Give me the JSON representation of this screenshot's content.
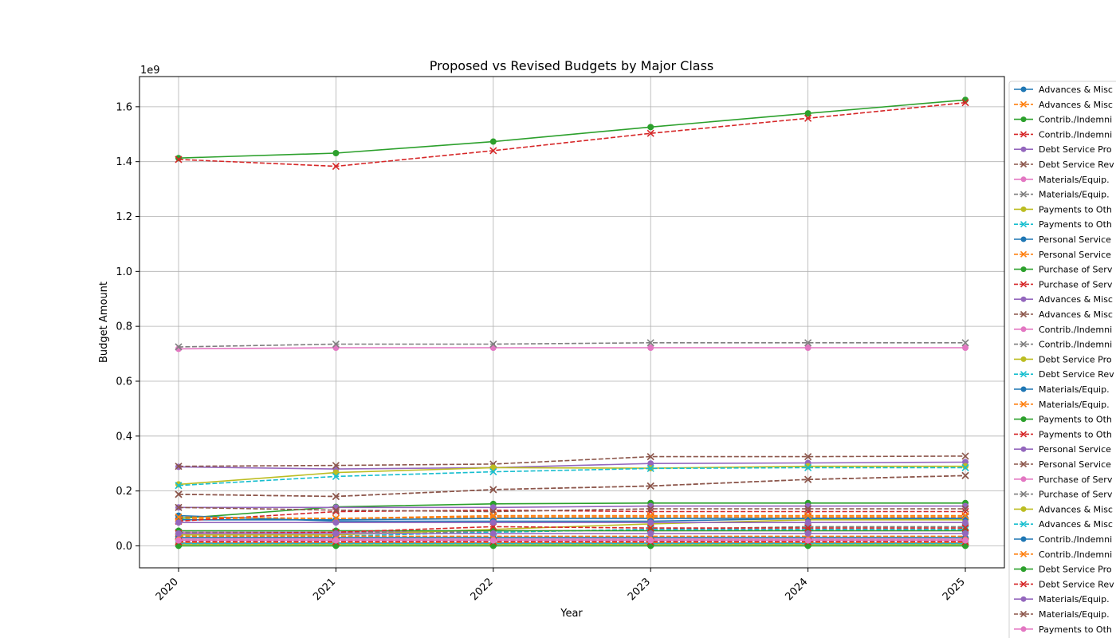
{
  "chart_data": {
    "type": "line",
    "title": "Proposed vs Revised Budgets by Major Class",
    "xlabel": "Year",
    "ylabel": "Budget Amount",
    "y_offset_label": "1e9",
    "x": [
      "2020",
      "2021",
      "2022",
      "2023",
      "2024",
      "2025"
    ],
    "ylim": [
      -0.08,
      1.71
    ],
    "yticks": [
      "0.0",
      "0.2",
      "0.4",
      "0.6",
      "0.8",
      "1.0",
      "1.2",
      "1.4",
      "1.6"
    ],
    "grid": true,
    "legend_position": "right (clipped)",
    "series": [
      {
        "name": "Advances & Misc",
        "color": "#1f77b4",
        "style": "solid",
        "marker": "o",
        "values": [
          0.01,
          0.01,
          0.01,
          0.01,
          0.01,
          0.01
        ]
      },
      {
        "name": "Advances & Misc",
        "color": "#ff7f0e",
        "style": "dashed",
        "marker": "x",
        "values": [
          0.012,
          0.012,
          0.012,
          0.012,
          0.012,
          0.012
        ]
      },
      {
        "name": "Contrib./Indemni",
        "color": "#2ca02c",
        "style": "solid",
        "marker": "o",
        "values": [
          1.413,
          1.431,
          1.473,
          1.526,
          1.576,
          1.625
        ]
      },
      {
        "name": "Contrib./Indemni",
        "color": "#d62728",
        "style": "dashed",
        "marker": "x",
        "values": [
          1.408,
          1.383,
          1.44,
          1.503,
          1.558,
          1.615
        ]
      },
      {
        "name": "Debt Service Pro",
        "color": "#9467bd",
        "style": "solid",
        "marker": "o",
        "values": [
          0.288,
          0.28,
          0.285,
          0.3,
          0.302,
          0.305
        ]
      },
      {
        "name": "Debt Service Rev",
        "color": "#8c564b",
        "style": "dashed",
        "marker": "x",
        "values": [
          0.29,
          0.293,
          0.298,
          0.325,
          0.325,
          0.327
        ]
      },
      {
        "name": "Materials/Equip.",
        "color": "#e377c2",
        "style": "solid",
        "marker": "o",
        "values": [
          0.718,
          0.722,
          0.722,
          0.722,
          0.722,
          0.722
        ]
      },
      {
        "name": "Materials/Equip.",
        "color": "#7f7f7f",
        "style": "dashed",
        "marker": "x",
        "values": [
          0.725,
          0.735,
          0.735,
          0.74,
          0.74,
          0.74
        ]
      },
      {
        "name": "Payments to Oth",
        "color": "#bcbd22",
        "style": "solid",
        "marker": "o",
        "values": [
          0.224,
          0.267,
          0.285,
          0.283,
          0.29,
          0.29
        ]
      },
      {
        "name": "Payments to Oth",
        "color": "#17becf",
        "style": "dashed",
        "marker": "x",
        "values": [
          0.22,
          0.253,
          0.27,
          0.282,
          0.285,
          0.285
        ]
      },
      {
        "name": "Personal Service",
        "color": "#1f77b4",
        "style": "solid",
        "marker": "o",
        "values": [
          0.095,
          0.095,
          0.1,
          0.1,
          0.1,
          0.1
        ]
      },
      {
        "name": "Personal Service",
        "color": "#ff7f0e",
        "style": "dashed",
        "marker": "x",
        "values": [
          0.1,
          0.1,
          0.105,
          0.105,
          0.105,
          0.105
        ]
      },
      {
        "name": "Purchase of Serv",
        "color": "#2ca02c",
        "style": "solid",
        "marker": "o",
        "values": [
          0.1,
          0.142,
          0.153,
          0.156,
          0.156,
          0.156
        ]
      },
      {
        "name": "Purchase of Serv",
        "color": "#d62728",
        "style": "dashed",
        "marker": "x",
        "values": [
          0.09,
          0.125,
          0.13,
          0.125,
          0.125,
          0.125
        ]
      },
      {
        "name": "Advances & Misc",
        "color": "#9467bd",
        "style": "solid",
        "marker": "o",
        "values": [
          0.14,
          0.14,
          0.14,
          0.145,
          0.145,
          0.145
        ]
      },
      {
        "name": "Advances & Misc",
        "color": "#8c564b",
        "style": "dashed",
        "marker": "x",
        "values": [
          0.14,
          0.13,
          0.125,
          0.135,
          0.135,
          0.135
        ]
      },
      {
        "name": "Contrib./Indemni",
        "color": "#e377c2",
        "style": "solid",
        "marker": "o",
        "values": [
          0.05,
          0.05,
          0.055,
          0.055,
          0.055,
          0.055
        ]
      },
      {
        "name": "Contrib./Indemni",
        "color": "#7f7f7f",
        "style": "dashed",
        "marker": "x",
        "values": [
          0.05,
          0.05,
          0.05,
          0.06,
          0.07,
          0.07
        ]
      },
      {
        "name": "Debt Service Pro",
        "color": "#bcbd22",
        "style": "solid",
        "marker": "o",
        "values": [
          0.04,
          0.04,
          0.06,
          0.08,
          0.095,
          0.095
        ]
      },
      {
        "name": "Debt Service Rev",
        "color": "#17becf",
        "style": "dashed",
        "marker": "x",
        "values": [
          0.035,
          0.035,
          0.05,
          0.06,
          0.06,
          0.06
        ]
      },
      {
        "name": "Materials/Equip.",
        "color": "#1f77b4",
        "style": "solid",
        "marker": "o",
        "values": [
          0.11,
          0.09,
          0.09,
          0.09,
          0.1,
          0.1
        ]
      },
      {
        "name": "Materials/Equip.",
        "color": "#ff7f0e",
        "style": "dashed",
        "marker": "x",
        "values": [
          0.105,
          0.1,
          0.11,
          0.11,
          0.11,
          0.11
        ]
      },
      {
        "name": "Payments to Oth",
        "color": "#2ca02c",
        "style": "solid",
        "marker": "o",
        "values": [
          0.055,
          0.055,
          0.055,
          0.055,
          0.055,
          0.055
        ]
      },
      {
        "name": "Payments to Oth",
        "color": "#d62728",
        "style": "dashed",
        "marker": "x",
        "values": [
          0.045,
          0.05,
          0.07,
          0.065,
          0.065,
          0.065
        ]
      },
      {
        "name": "Personal Service",
        "color": "#9467bd",
        "style": "solid",
        "marker": "o",
        "values": [
          0.085,
          0.085,
          0.085,
          0.085,
          0.085,
          0.085
        ]
      },
      {
        "name": "Personal Service",
        "color": "#8c564b",
        "style": "dashed",
        "marker": "x",
        "values": [
          0.188,
          0.18,
          0.205,
          0.218,
          0.242,
          0.256
        ]
      },
      {
        "name": "Purchase of Serv",
        "color": "#e377c2",
        "style": "solid",
        "marker": "o",
        "values": [
          0.025,
          0.025,
          0.025,
          0.025,
          0.025,
          0.025
        ]
      },
      {
        "name": "Purchase of Serv",
        "color": "#7f7f7f",
        "style": "dashed",
        "marker": "x",
        "values": [
          0.02,
          0.02,
          0.02,
          0.02,
          0.02,
          0.02
        ]
      },
      {
        "name": "Advances & Misc",
        "color": "#bcbd22",
        "style": "solid",
        "marker": "o",
        "values": [
          0.005,
          0.005,
          0.005,
          0.005,
          0.005,
          0.005
        ]
      },
      {
        "name": "Advances & Misc",
        "color": "#17becf",
        "style": "dashed",
        "marker": "x",
        "values": [
          0.008,
          0.008,
          0.008,
          0.008,
          0.008,
          0.008
        ]
      },
      {
        "name": "Contrib./Indemni",
        "color": "#1f77b4",
        "style": "solid",
        "marker": "o",
        "values": [
          0.03,
          0.03,
          0.03,
          0.03,
          0.03,
          0.03
        ]
      },
      {
        "name": "Contrib./Indemni",
        "color": "#ff7f0e",
        "style": "dashed",
        "marker": "x",
        "values": [
          0.035,
          0.035,
          0.035,
          0.035,
          0.035,
          0.035
        ]
      },
      {
        "name": "Debt Service Pro",
        "color": "#2ca02c",
        "style": "solid",
        "marker": "o",
        "values": [
          0.0,
          0.0,
          0.0,
          0.0,
          0.0,
          0.0
        ]
      },
      {
        "name": "Debt Service Rev",
        "color": "#d62728",
        "style": "dashed",
        "marker": "x",
        "values": [
          0.015,
          0.015,
          0.015,
          0.015,
          0.015,
          0.015
        ]
      },
      {
        "name": "Materials/Equip.",
        "color": "#9467bd",
        "style": "solid",
        "marker": "o",
        "values": [
          0.045,
          0.045,
          0.045,
          0.045,
          0.045,
          0.045
        ]
      },
      {
        "name": "Materials/Equip.",
        "color": "#8c564b",
        "style": "dashed",
        "marker": "x",
        "values": [
          0.188,
          0.18,
          0.205,
          0.218,
          0.242,
          0.256
        ]
      },
      {
        "name": "Payments to Oth",
        "color": "#e377c2",
        "style": "solid",
        "marker": "o",
        "values": [
          0.02,
          0.02,
          0.02,
          0.02,
          0.02,
          0.02
        ]
      }
    ]
  }
}
